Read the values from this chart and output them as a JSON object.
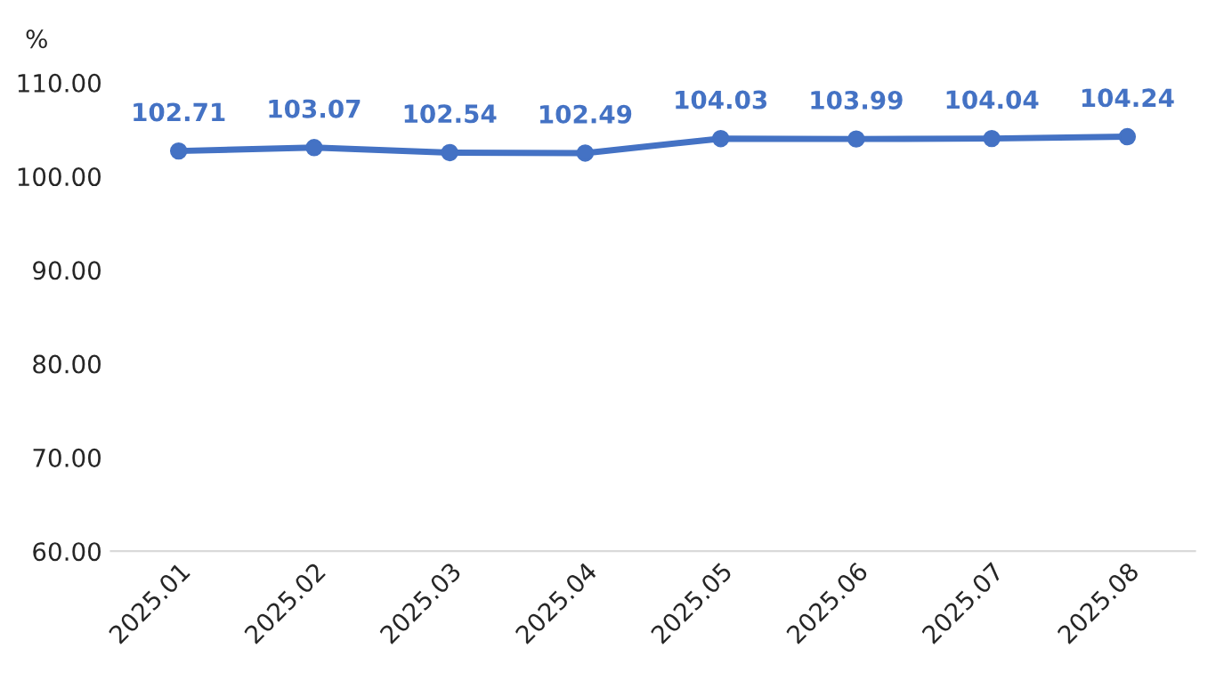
{
  "chart_data": {
    "type": "line",
    "ylabel": "%",
    "categories": [
      "2025.01",
      "2025.02",
      "2025.03",
      "2025.04",
      "2025.05",
      "2025.06",
      "2025.07",
      "2025.08"
    ],
    "series": [
      {
        "color": "#4472c4",
        "values": [
          102.71,
          103.07,
          102.54,
          102.49,
          104.03,
          103.99,
          104.04,
          104.24
        ]
      }
    ],
    "ylim": [
      60,
      110
    ],
    "yticks": [
      {
        "value": 60,
        "label": "60.00"
      },
      {
        "value": 70,
        "label": "70.00"
      },
      {
        "value": 80,
        "label": "80.00"
      },
      {
        "value": 90,
        "label": "90.00"
      },
      {
        "value": 100,
        "label": "100.00"
      },
      {
        "value": 110,
        "label": "110.00"
      }
    ],
    "data_labels": true,
    "marker": "circle",
    "line_style": "solid",
    "grid": false,
    "legend": false
  }
}
